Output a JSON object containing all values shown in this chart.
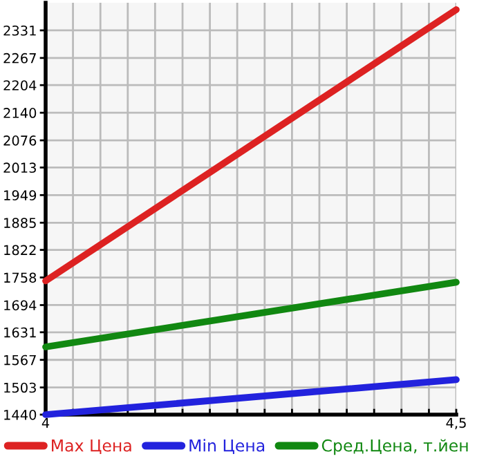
{
  "chart_data": {
    "type": "line",
    "x": [
      4,
      4.5
    ],
    "series": [
      {
        "name": "Max Цена",
        "color": "#dd2222",
        "values": [
          1750,
          2379
        ]
      },
      {
        "name": "Min Цена",
        "color": "#2222dd",
        "values": [
          1440,
          1521
        ]
      },
      {
        "name": "Сред.Цена, т.йен",
        "color": "#118811",
        "values": [
          1597,
          1747
        ]
      }
    ],
    "xlim": [
      4,
      4.5
    ],
    "xticks": [
      4,
      {
        "value": 4.0333,
        "label": null
      },
      {
        "value": 4.0667,
        "label": null
      },
      {
        "value": 4.1,
        "label": null
      },
      {
        "value": 4.1333,
        "label": null
      },
      {
        "value": 4.1667,
        "label": null
      },
      {
        "value": 4.2,
        "label": null
      },
      {
        "value": 4.2333,
        "label": null
      },
      {
        "value": 4.2667,
        "label": null
      },
      {
        "value": 4.3,
        "label": null
      },
      {
        "value": 4.3333,
        "label": null
      },
      {
        "value": 4.3667,
        "label": null
      },
      {
        "value": 4.4,
        "label": null
      },
      {
        "value": 4.4333,
        "label": null
      },
      {
        "value": 4.4667,
        "label": null
      },
      {
        "value": 4.5,
        "label": "4,5"
      }
    ],
    "ylim": [
      1440,
      2395
    ],
    "yticks": [
      1440,
      1503,
      1567,
      1631,
      1694,
      1758,
      1822,
      1885,
      1949,
      2013,
      2076,
      2140,
      2204,
      2267,
      2331
    ],
    "grid": true,
    "legend": "bottom",
    "marker": "none",
    "line_style": "solid"
  }
}
